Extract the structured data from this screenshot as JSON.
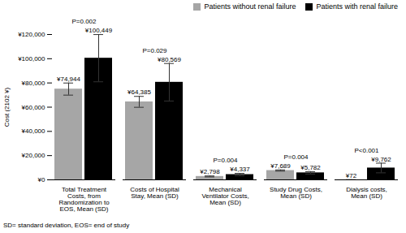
{
  "chart_data": {
    "type": "bar",
    "ylabel": "Cost (2102 ¥)",
    "categories": [
      "Total Treatment Costs, from Randomization to EOS, Mean (SD)",
      "Costs of Hospital Stay, Mean (SD)",
      "Mechanical Ventilator Costs, Mean (SD)",
      "Study Drug Costs, Mean (SD)",
      "Dialysis costs, Mean (SD)"
    ],
    "series": [
      {
        "name": "Patients without renal failure",
        "color": "#a6a6a6",
        "values": [
          74944,
          64385,
          2798,
          7689,
          72
        ],
        "value_labels": [
          "¥74,944",
          "¥64,385",
          "¥2,798",
          "¥7,689",
          "¥72"
        ],
        "errors": [
          5000,
          4500,
          400,
          500,
          50
        ]
      },
      {
        "name": "Patients with renal failure",
        "color": "#000000",
        "values": [
          100449,
          80569,
          4337,
          5782,
          9762
        ],
        "value_labels": [
          "¥100,449",
          "¥80,569",
          "¥4,337",
          "¥5,782",
          "¥9,762"
        ],
        "errors": [
          19500,
          15500,
          1000,
          1000,
          4000
        ]
      }
    ],
    "annotations": [
      "P=0.002",
      "P=0.029",
      "P=0.004",
      "P=0.004",
      "P<0.001"
    ],
    "caption": "SD= standard deviation, EOS= end of study",
    "ylim": [
      0,
      120000
    ],
    "yticks": [
      {
        "value": 0,
        "label": "¥0"
      },
      {
        "value": 20000,
        "label": "¥20,000"
      },
      {
        "value": 40000,
        "label": "¥40,000"
      },
      {
        "value": 60000,
        "label": "¥60,000"
      },
      {
        "value": 80000,
        "label": "¥80,000"
      },
      {
        "value": 100000,
        "label": "¥100,000"
      },
      {
        "value": 120000,
        "label": "¥120,000"
      }
    ],
    "grid": false,
    "legend": "top-right",
    "data_labels": true
  }
}
